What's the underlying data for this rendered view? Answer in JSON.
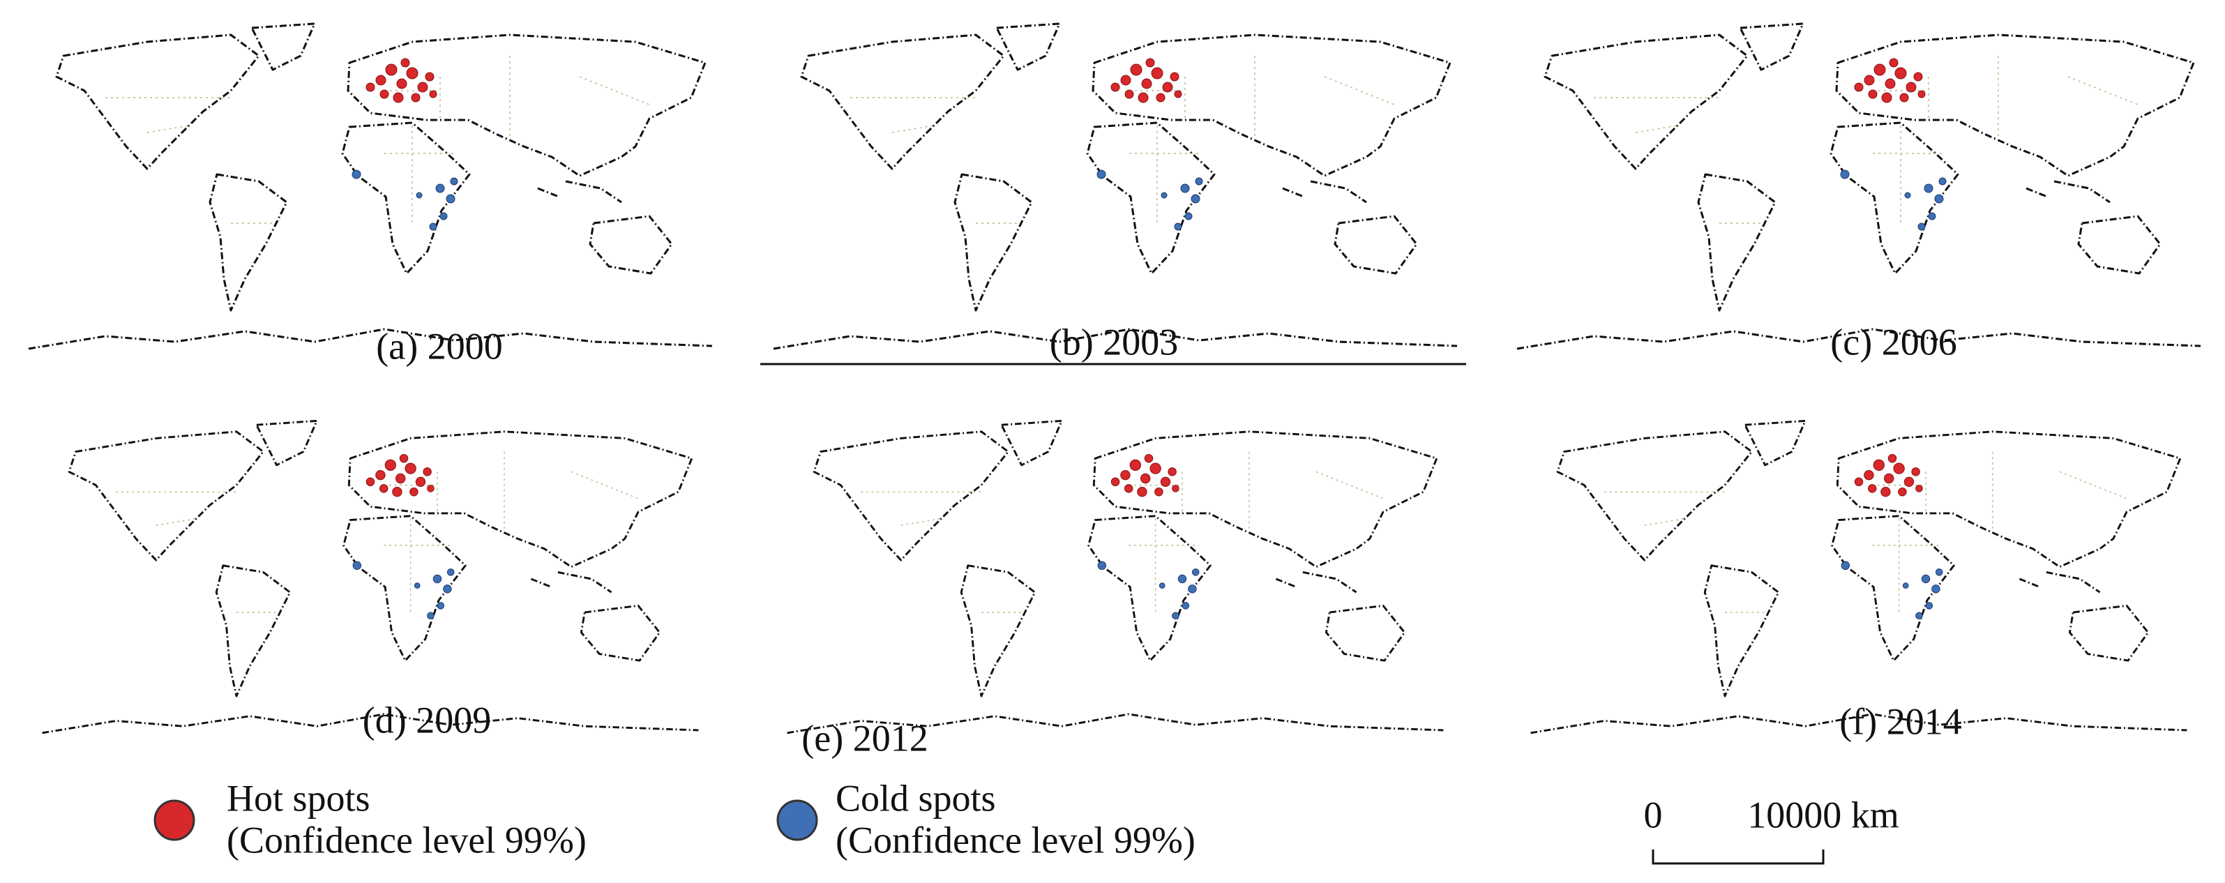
{
  "panels": [
    "(a) 2000",
    "(b) 2003",
    "(c) 2006",
    "(d) 2009",
    "(e) 2012",
    "(f) 2014"
  ],
  "legend": {
    "hot": [
      "Hot spots",
      "(Confidence level 99%)"
    ],
    "cold": [
      "Cold spots",
      "(Confidence level 99%)"
    ]
  },
  "scale_bar": {
    "start": "0",
    "end": "10000 km"
  }
}
